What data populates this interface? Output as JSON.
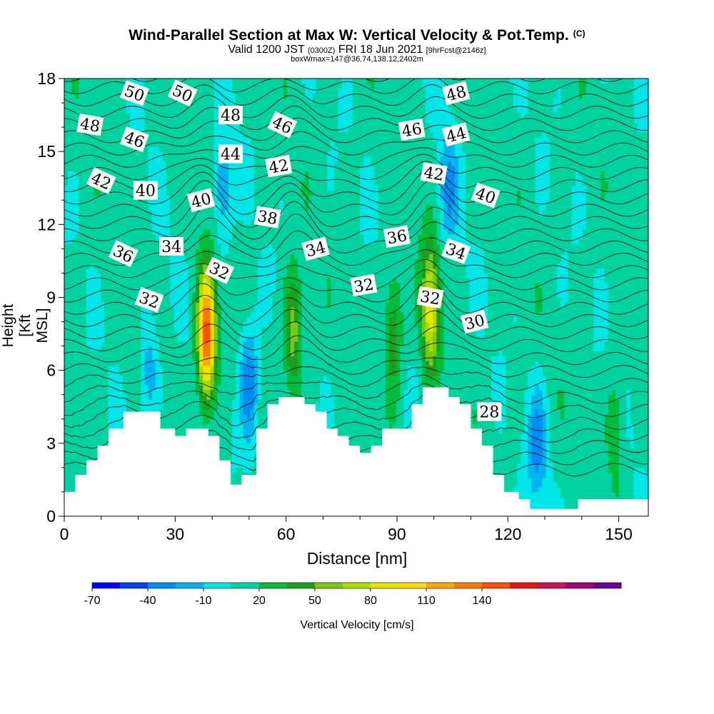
{
  "title": {
    "main": "Wind-Parallel Section at Max W: Vertical Velocity & Pot.Temp.",
    "copyright": "(C)",
    "valid_prefix": "Valid 1200 JST",
    "valid_utc": "(0300Z)",
    "valid_date": "FRI 18 Jun 2021",
    "forecast": "[9hrFcst@2146z]",
    "box": "boxWmax=147@36.74,138.12,2402m"
  },
  "chart_data": {
    "type": "heatmap",
    "xlabel": "Distance [nm]",
    "ylabel": "Height [Kft MSL]",
    "xlim": [
      0,
      158
    ],
    "ylim": [
      0,
      18
    ],
    "x_ticks": [
      0,
      30,
      60,
      90,
      120,
      150
    ],
    "y_ticks": [
      0,
      3,
      6,
      9,
      12,
      15,
      18
    ],
    "colorbar": {
      "label": "Vertical Velocity [cm/s]",
      "tick_labels": [
        "-70",
        "-40",
        "-10",
        "20",
        "50",
        "80",
        "110",
        "140"
      ],
      "tick_values": [
        -70,
        -40,
        -10,
        20,
        50,
        80,
        110,
        140
      ],
      "min": -70,
      "max": 155,
      "step": 15,
      "colors": [
        "#0000ff",
        "#0044f0",
        "#008cf0",
        "#00b4f0",
        "#00e6e6",
        "#00d2a0",
        "#00be3c",
        "#1ea01e",
        "#78c814",
        "#aadc00",
        "#e6e600",
        "#ffdc00",
        "#ffaa00",
        "#ff7800",
        "#ff5000",
        "#e61414",
        "#c81450",
        "#a00078",
        "#6e0096"
      ]
    },
    "terrain_kft": [
      [
        0,
        1
      ],
      [
        3,
        1
      ],
      [
        3,
        1.7
      ],
      [
        6,
        1.7
      ],
      [
        6,
        2.3
      ],
      [
        9,
        2.3
      ],
      [
        9,
        2.9
      ],
      [
        12,
        2.9
      ],
      [
        12,
        3.6
      ],
      [
        16,
        3.6
      ],
      [
        16,
        4.3
      ],
      [
        26,
        4.3
      ],
      [
        26,
        3.6
      ],
      [
        30,
        3.6
      ],
      [
        30,
        3.3
      ],
      [
        33,
        3.3
      ],
      [
        33,
        3.6
      ],
      [
        39,
        3.6
      ],
      [
        39,
        3.3
      ],
      [
        42,
        3.3
      ],
      [
        42,
        2.3
      ],
      [
        45,
        2.3
      ],
      [
        45,
        1.3
      ],
      [
        48,
        1.3
      ],
      [
        48,
        1.7
      ],
      [
        52,
        1.7
      ],
      [
        52,
        3.6
      ],
      [
        55,
        3.6
      ],
      [
        55,
        4.6
      ],
      [
        58,
        4.6
      ],
      [
        58,
        4.9
      ],
      [
        65,
        4.9
      ],
      [
        65,
        4.6
      ],
      [
        68,
        4.6
      ],
      [
        68,
        4.3
      ],
      [
        71,
        4.3
      ],
      [
        71,
        3.6
      ],
      [
        74,
        3.6
      ],
      [
        74,
        3.3
      ],
      [
        77,
        3.3
      ],
      [
        77,
        2.9
      ],
      [
        80,
        2.9
      ],
      [
        80,
        2.6
      ],
      [
        83,
        2.6
      ],
      [
        83,
        2.9
      ],
      [
        86,
        2.9
      ],
      [
        86,
        3.6
      ],
      [
        94,
        3.6
      ],
      [
        94,
        4.6
      ],
      [
        97,
        4.6
      ],
      [
        97,
        5.3
      ],
      [
        104,
        5.3
      ],
      [
        104,
        4.9
      ],
      [
        107,
        4.9
      ],
      [
        107,
        4.6
      ],
      [
        110,
        4.6
      ],
      [
        110,
        3.6
      ],
      [
        113,
        3.6
      ],
      [
        113,
        2.9
      ],
      [
        116,
        2.9
      ],
      [
        116,
        1.7
      ],
      [
        119,
        1.7
      ],
      [
        119,
        1
      ],
      [
        123,
        1
      ],
      [
        123,
        0.7
      ],
      [
        126,
        0.7
      ],
      [
        126,
        0.3
      ],
      [
        139,
        0.3
      ],
      [
        139,
        0.7
      ],
      [
        158,
        0.7
      ]
    ],
    "updrafts": [
      {
        "x": 38.5,
        "y": 7.5,
        "peak": 150
      },
      {
        "x": 62,
        "y": 7.5,
        "peak": 60
      },
      {
        "x": 99,
        "y": 8.5,
        "peak": 90
      },
      {
        "x": 89,
        "y": 7.5,
        "peak": 50
      },
      {
        "x": 149,
        "y": 3.5,
        "peak": 35
      }
    ],
    "downdrafts": [
      {
        "x": 50,
        "y": 5.5,
        "peak": -40
      },
      {
        "x": 43,
        "y": 13.5,
        "peak": -25
      },
      {
        "x": 104,
        "y": 13.5,
        "peak": -25
      },
      {
        "x": 128,
        "y": 3,
        "peak": -30
      },
      {
        "x": 23,
        "y": 6,
        "peak": -20
      }
    ],
    "isentropes": [
      {
        "label": "28",
        "x": 115,
        "y": 4.3
      },
      {
        "label": "30",
        "x": 111,
        "y": 8
      },
      {
        "label": "32",
        "x": 23,
        "y": 8.9
      },
      {
        "label": "32",
        "x": 42,
        "y": 10.1
      },
      {
        "label": "32",
        "x": 81,
        "y": 9.5
      },
      {
        "label": "32",
        "x": 99,
        "y": 9
      },
      {
        "label": "34",
        "x": 29,
        "y": 11.1
      },
      {
        "label": "34",
        "x": 68,
        "y": 11
      },
      {
        "label": "34",
        "x": 106,
        "y": 10.9
      },
      {
        "label": "36",
        "x": 16,
        "y": 10.8
      },
      {
        "label": "36",
        "x": 90,
        "y": 11.5
      },
      {
        "label": "38",
        "x": 55,
        "y": 12.3
      },
      {
        "label": "40",
        "x": 22,
        "y": 13.4
      },
      {
        "label": "40",
        "x": 37,
        "y": 13
      },
      {
        "label": "40",
        "x": 114,
        "y": 13.2
      },
      {
        "label": "42",
        "x": 10,
        "y": 13.8
      },
      {
        "label": "42",
        "x": 58,
        "y": 14.4
      },
      {
        "label": "42",
        "x": 100,
        "y": 14.1
      },
      {
        "label": "44",
        "x": 45,
        "y": 14.9
      },
      {
        "label": "44",
        "x": 106,
        "y": 15.7
      },
      {
        "label": "46",
        "x": 19,
        "y": 15.5
      },
      {
        "label": "46",
        "x": 59,
        "y": 16.1
      },
      {
        "label": "46",
        "x": 94,
        "y": 15.9
      },
      {
        "label": "48",
        "x": 7,
        "y": 16.1
      },
      {
        "label": "48",
        "x": 45,
        "y": 16.5
      },
      {
        "label": "48",
        "x": 106,
        "y": 17.4
      },
      {
        "label": "50",
        "x": 19,
        "y": 17.4
      },
      {
        "label": "50",
        "x": 32,
        "y": 17.4
      }
    ]
  }
}
